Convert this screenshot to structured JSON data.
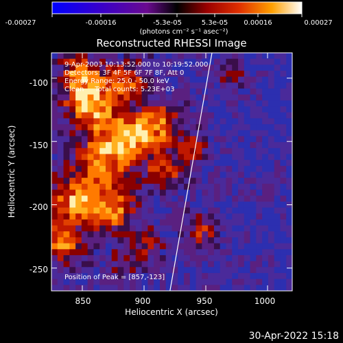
{
  "colorbar": {
    "ticks": [
      "-0.00027",
      "-0.00016",
      "-5.3e-05",
      "5.3e-05",
      "0.00016",
      "0.00027"
    ],
    "units_label": "(photons cm⁻² s⁻¹ asec⁻²)",
    "range": [
      -0.00027,
      0.00027
    ]
  },
  "chart_data": {
    "type": "heatmap",
    "title": "Reconstructed RHESSI Image",
    "xlabel": "Heliocentric X (arcsec)",
    "ylabel": "Heliocentric Y (arcsec)",
    "xlim": [
      825,
      1020
    ],
    "ylim": [
      -268,
      -80
    ],
    "x_ticks": [
      850,
      900,
      950,
      1000
    ],
    "y_ticks": [
      -100,
      -150,
      -200,
      -250
    ],
    "annotations": [
      "9-Apr-2003 10:13:52.000 to 10:19:52.000",
      "Detectors: 3F 4F 5F 6F 7F 8F, Att 0",
      "Energy Range: 25.0 - 50.0 keV",
      "Clean     Total counts: 5.23E+03"
    ],
    "peak_label": "Position of Peak = [857,-123]",
    "limb_x_at_y": [
      [
        955,
        -80
      ],
      [
        921,
        -268
      ]
    ]
  },
  "footer": {
    "timestamp": "30-Apr-2022 15:18"
  }
}
